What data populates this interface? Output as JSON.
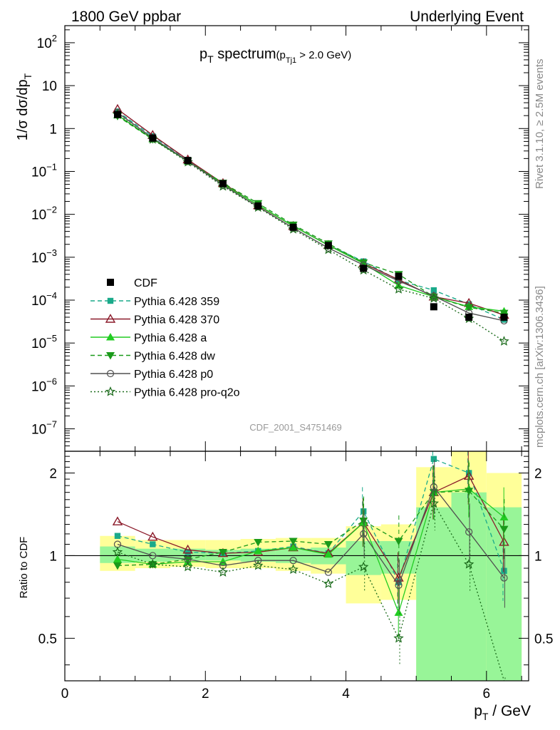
{
  "header": {
    "left": "1800 GeV ppbar",
    "right": "Underlying Event"
  },
  "side_labels": {
    "rivet": "Rivet 3.1.10, ≥ 2.5M events",
    "mcplots": "mcplots.cern.ch [arXiv:1306.3436]"
  },
  "analysis_id": "CDF_2001_S4751469",
  "chart_data": [
    {
      "type": "scatter",
      "panel": "main",
      "title": "pT spectrum(pTj1 > 2.0 GeV)",
      "title_parts": {
        "p": "p",
        "t_sub": "T",
        "word": " spectrum",
        "cut_p": "(p",
        "cut_sub": "Tj1",
        "cut_rest": " > 2.0 GeV)"
      },
      "ylabel": "1/σ dσ/dpT",
      "ylabel_parts": {
        "main": "1/σ dσ/dp",
        "sub": "T"
      },
      "xlabel": "pT / GeV",
      "xlabel_parts": {
        "p": "p",
        "sub": "T",
        "rest": " / GeV"
      },
      "y_scale": "log",
      "xlim": [
        0,
        6.6
      ],
      "ylim": [
        3e-08,
        250
      ],
      "x_ticks": [
        "0",
        "2",
        "4",
        "6"
      ],
      "y_ticks": [
        {
          "base": "10",
          "exp": "2"
        },
        {
          "base": "10",
          "exp": ""
        },
        {
          "base": "1",
          "exp": ""
        },
        {
          "base": "10",
          "exp": "−1"
        },
        {
          "base": "10",
          "exp": "−2"
        },
        {
          "base": "10",
          "exp": "−3"
        },
        {
          "base": "10",
          "exp": "−4"
        },
        {
          "base": "10",
          "exp": "−5"
        },
        {
          "base": "10",
          "exp": "−6"
        },
        {
          "base": "10",
          "exp": "−7"
        }
      ],
      "legend_position": "left",
      "x": [
        0.75,
        1.25,
        1.75,
        2.25,
        2.75,
        3.25,
        3.75,
        4.25,
        4.75,
        5.25,
        5.75,
        6.25
      ],
      "data": {
        "name": "CDF",
        "color": "#000000",
        "values": [
          2.12,
          0.6,
          0.18,
          0.052,
          0.0157,
          0.005,
          0.00188,
          0.00055,
          0.00036,
          7e-05,
          4e-05,
          4e-05
        ]
      },
      "series": [
        {
          "name": "Pythia 6.428 359",
          "color": "#1aaa8a",
          "style": "dashed",
          "marker": "square",
          "values": [
            2.5,
            0.66,
            0.185,
            0.053,
            0.0163,
            0.0054,
            0.00192,
            0.0008,
            0.00029,
            0.00017,
            8e-05,
            3.5e-05
          ]
        },
        {
          "name": "Pythia 6.428 370",
          "color": "#8b1a2a",
          "style": "solid",
          "marker": "open-triangle",
          "values": [
            2.82,
            0.7,
            0.188,
            0.053,
            0.0161,
            0.0053,
            0.00191,
            0.00072,
            0.0003,
            0.00012,
            8.5e-05,
            4.5e-05
          ]
        },
        {
          "name": "Pythia 6.428 a",
          "color": "#22cc22",
          "style": "solid",
          "marker": "triangle",
          "values": [
            2.05,
            0.57,
            0.172,
            0.05,
            0.0165,
            0.0053,
            0.0019,
            0.00072,
            0.00022,
            0.00012,
            7e-05,
            5.5e-05
          ]
        },
        {
          "name": "Pythia 6.428 dw",
          "color": "#1a9a1a",
          "style": "dashed",
          "marker": "down-triangle",
          "values": [
            1.95,
            0.56,
            0.175,
            0.054,
            0.018,
            0.0057,
            0.00208,
            0.00075,
            0.0004,
            0.00012,
            6.8e-05,
            5e-05
          ]
        },
        {
          "name": "Pythia 6.428 p0",
          "color": "#505050",
          "style": "solid",
          "marker": "open-circle",
          "values": [
            2.35,
            0.6,
            0.175,
            0.048,
            0.015,
            0.0048,
            0.00164,
            0.00066,
            0.00028,
            0.000125,
            5e-05,
            3.3e-05
          ]
        },
        {
          "name": "Pythia 6.428 pro-q2o",
          "color": "#1a6a1a",
          "style": "dotted",
          "marker": "open-star",
          "values": [
            2.15,
            0.56,
            0.165,
            0.045,
            0.0145,
            0.0045,
            0.0015,
            0.0005,
            0.00018,
            0.00011,
            3.7e-05,
            1.1e-05
          ]
        }
      ]
    },
    {
      "type": "line",
      "panel": "ratio",
      "ylabel": "Ratio to CDF",
      "y_scale": "log",
      "xlim": [
        0,
        6.6
      ],
      "ylim": [
        0.35,
        2.4
      ],
      "y_ticks": [
        "0.5",
        "1",
        "2"
      ],
      "x": [
        0.75,
        1.25,
        1.75,
        2.25,
        2.75,
        3.25,
        3.75,
        4.25,
        4.75,
        5.25,
        5.75,
        6.25
      ],
      "band_edges": [
        0.5,
        1.0,
        1.5,
        2.0,
        2.5,
        3.0,
        3.5,
        4.0,
        4.5,
        5.0,
        5.5,
        6.0,
        6.5
      ],
      "band_outer": [
        [
          0.88,
          1.18
        ],
        [
          0.9,
          1.14
        ],
        [
          0.91,
          1.14
        ],
        [
          0.9,
          1.14
        ],
        [
          0.9,
          1.15
        ],
        [
          0.88,
          1.16
        ],
        [
          0.86,
          1.16
        ],
        [
          0.67,
          1.28
        ],
        [
          0.69,
          1.3
        ],
        [
          0.1,
          2.1
        ],
        [
          0.1,
          3.0
        ],
        [
          0.1,
          2.0
        ]
      ],
      "band_inner": [
        [
          0.94,
          1.08
        ],
        [
          0.95,
          1.06
        ],
        [
          0.96,
          1.06
        ],
        [
          0.96,
          1.05
        ],
        [
          0.95,
          1.06
        ],
        [
          0.94,
          1.06
        ],
        [
          0.93,
          1.07
        ],
        [
          0.85,
          1.13
        ],
        [
          0.86,
          1.13
        ],
        [
          0.1,
          1.5
        ],
        [
          0.1,
          1.7
        ],
        [
          0.1,
          1.5
        ]
      ],
      "colors": {
        "outer": "#ffff99",
        "inner": "#98f598"
      },
      "series": [
        {
          "name": "Pythia 6.428 359",
          "values": [
            1.18,
            1.1,
            1.03,
            1.02,
            1.04,
            1.08,
            1.02,
            1.45,
            0.8,
            2.25,
            2.0,
            0.88
          ]
        },
        {
          "name": "Pythia 6.428 370",
          "values": [
            1.33,
            1.17,
            1.05,
            1.02,
            1.03,
            1.07,
            1.02,
            1.32,
            0.83,
            1.7,
            1.95,
            1.12
          ]
        },
        {
          "name": "Pythia 6.428 a",
          "values": [
            0.97,
            0.93,
            0.95,
            0.95,
            1.04,
            1.07,
            1.01,
            1.32,
            0.62,
            1.7,
            1.75,
            1.38
          ]
        },
        {
          "name": "Pythia 6.428 dw",
          "values": [
            0.92,
            0.93,
            0.97,
            1.03,
            1.12,
            1.13,
            1.1,
            1.34,
            1.13,
            1.7,
            1.72,
            1.25
          ]
        },
        {
          "name": "Pythia 6.428 p0",
          "values": [
            1.1,
            1.0,
            0.97,
            0.92,
            0.96,
            0.96,
            0.87,
            1.2,
            0.78,
            1.78,
            1.22,
            0.83
          ]
        },
        {
          "name": "Pythia 6.428 pro-q2o",
          "values": [
            1.03,
            0.93,
            0.91,
            0.87,
            0.92,
            0.89,
            0.79,
            0.91,
            0.5,
            1.55,
            0.93,
            0.28
          ]
        }
      ]
    }
  ]
}
